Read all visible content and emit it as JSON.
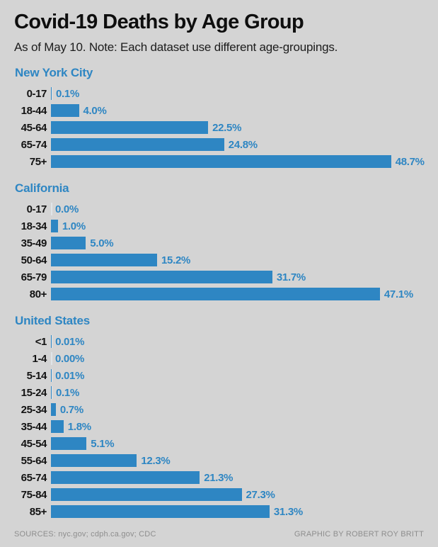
{
  "header": {
    "title": "Covid-19 Deaths by Age Group",
    "subtitle": "As of May 10. Note: Each dataset use different age-groupings."
  },
  "footer": {
    "sources": "SOURCES: nyc.gov; cdph.ca.gov; CDC",
    "credit": "GRAPHIC BY ROBERT ROY BRITT"
  },
  "colors": {
    "background": "#d4d4d4",
    "bar": "#2e86c3",
    "section_title": "#2e86c3",
    "value_label": "#2e86c3",
    "age_label": "#121212",
    "title_text": "#0e0e0e",
    "footer_text": "#8e8e8e",
    "zero_tick": "#e0e4e8"
  },
  "chart_data": [
    {
      "type": "bar",
      "orientation": "horizontal",
      "title": "New York City",
      "categories": [
        "0-17",
        "18-44",
        "45-64",
        "65-74",
        "75+"
      ],
      "values": [
        0.1,
        4.0,
        22.5,
        24.8,
        48.7
      ],
      "value_labels": [
        "0.1%",
        "4.0%",
        "22.5%",
        "24.8%",
        "48.7%"
      ],
      "unit": "%",
      "xlim": [
        0,
        50
      ],
      "grid": false,
      "legend": false
    },
    {
      "type": "bar",
      "orientation": "horizontal",
      "title": "California",
      "categories": [
        "0-17",
        "18-34",
        "35-49",
        "50-64",
        "65-79",
        "80+"
      ],
      "values": [
        0.0,
        1.0,
        5.0,
        15.2,
        31.7,
        47.1
      ],
      "value_labels": [
        "0.0%",
        "1.0%",
        "5.0%",
        "15.2%",
        "31.7%",
        "47.1%"
      ],
      "unit": "%",
      "xlim": [
        0,
        50
      ],
      "grid": false,
      "legend": false
    },
    {
      "type": "bar",
      "orientation": "horizontal",
      "title": "United States",
      "categories": [
        "<1",
        "1-4",
        "5-14",
        "15-24",
        "25-34",
        "35-44",
        "45-54",
        "55-64",
        "65-74",
        "75-84",
        "85+"
      ],
      "values": [
        0.01,
        0.0,
        0.01,
        0.1,
        0.7,
        1.8,
        5.1,
        12.3,
        21.3,
        27.3,
        31.3
      ],
      "value_labels": [
        "0.01%",
        "0.00%",
        "0.01%",
        "0.1%",
        "0.7%",
        "1.8%",
        "5.1%",
        "12.3%",
        "21.3%",
        "27.3%",
        "31.3%"
      ],
      "unit": "%",
      "xlim": [
        0,
        50
      ],
      "grid": false,
      "legend": false
    }
  ]
}
